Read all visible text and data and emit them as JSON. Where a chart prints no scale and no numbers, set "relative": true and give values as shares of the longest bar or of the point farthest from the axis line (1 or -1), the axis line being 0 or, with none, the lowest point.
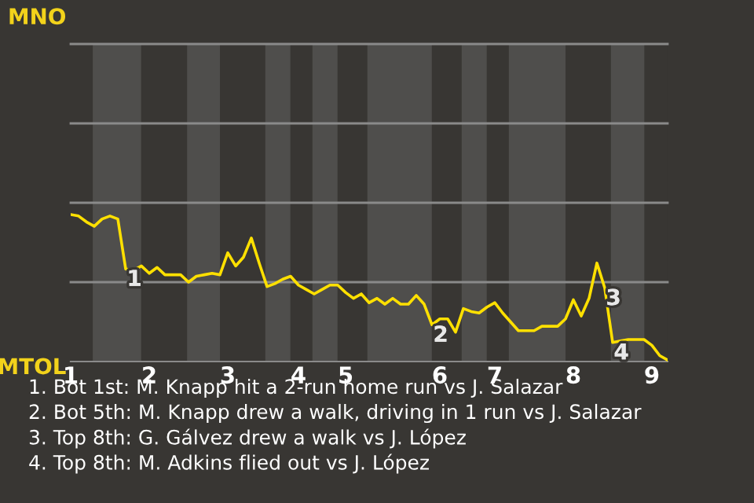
{
  "chart_data": {
    "type": "line",
    "relative": true,
    "categories": [
      "1",
      null,
      null,
      null,
      null,
      null,
      null,
      null,
      null,
      null,
      "2",
      null,
      null,
      null,
      null,
      null,
      null,
      null,
      null,
      null,
      "3",
      null,
      null,
      null,
      null,
      null,
      null,
      null,
      null,
      "4",
      null,
      null,
      null,
      null,
      null,
      "5",
      null,
      null,
      null,
      null,
      null,
      null,
      null,
      null,
      null,
      null,
      null,
      "6",
      null,
      null,
      null,
      null,
      null,
      null,
      "7",
      null,
      null,
      null,
      null,
      null,
      null,
      null,
      null,
      null,
      "8",
      null,
      null,
      null,
      null,
      null,
      null,
      null,
      null,
      null,
      "9",
      null,
      null
    ],
    "series": [
      {
        "color": "#ffe000",
        "values": [
          1,
          0.99,
          0.95,
          0.92,
          0.97,
          0.99,
          0.97,
          0.63,
          0.62,
          0.65,
          0.6,
          0.64,
          0.59,
          0.59,
          0.59,
          0.54,
          0.58,
          0.59,
          0.6,
          0.59,
          0.74,
          0.65,
          0.71,
          0.84,
          0.67,
          0.51,
          0.53,
          0.56,
          0.58,
          0.52,
          0.49,
          0.46,
          0.49,
          0.52,
          0.52,
          0.47,
          0.43,
          0.46,
          0.4,
          0.43,
          0.39,
          0.43,
          0.39,
          0.39,
          0.45,
          0.39,
          0.25,
          0.29,
          0.29,
          0.2,
          0.36,
          0.34,
          0.33,
          0.37,
          0.4,
          0.33,
          0.27,
          0.21,
          0.21,
          0.21,
          0.24,
          0.24,
          0.24,
          0.29,
          0.42,
          0.31,
          0.43,
          0.67,
          0.5,
          0.13,
          0.14,
          0.15,
          0.15,
          0.15,
          0.11,
          0.04,
          0.01
        ]
      }
    ],
    "line_style": "solid",
    "marker": "none",
    "ref_lines": [
      {
        "axis": "y",
        "value": 0.54,
        "color": "#8a8a8a"
      },
      {
        "axis": "y",
        "value": 1.08,
        "color": "#8a8a8a"
      },
      {
        "axis": "y",
        "value": 1.62,
        "color": "#8a8a8a"
      },
      {
        "axis": "y",
        "value": 2.16,
        "label": "MNO",
        "color": "#8a8a8a"
      }
    ],
    "annotations": [
      {
        "text": "1",
        "y": 0.63
      },
      {
        "text": "2",
        "y": 0.25
      },
      {
        "text": "3",
        "y": 0.5
      },
      {
        "text": "4",
        "y": 0.13
      },
      "MTOL",
      "1. Bot 1st: M. Knapp hit a 2-run home run vs J. Salazar",
      "2. Bot 5th: M. Knapp drew a walk, driving in 1 run vs J. Salazar",
      "3. Top 8th: G. Gálvez drew a walk vs J. López",
      "4. Top 8th: M. Adkins flied out vs J. López"
    ]
  }
}
